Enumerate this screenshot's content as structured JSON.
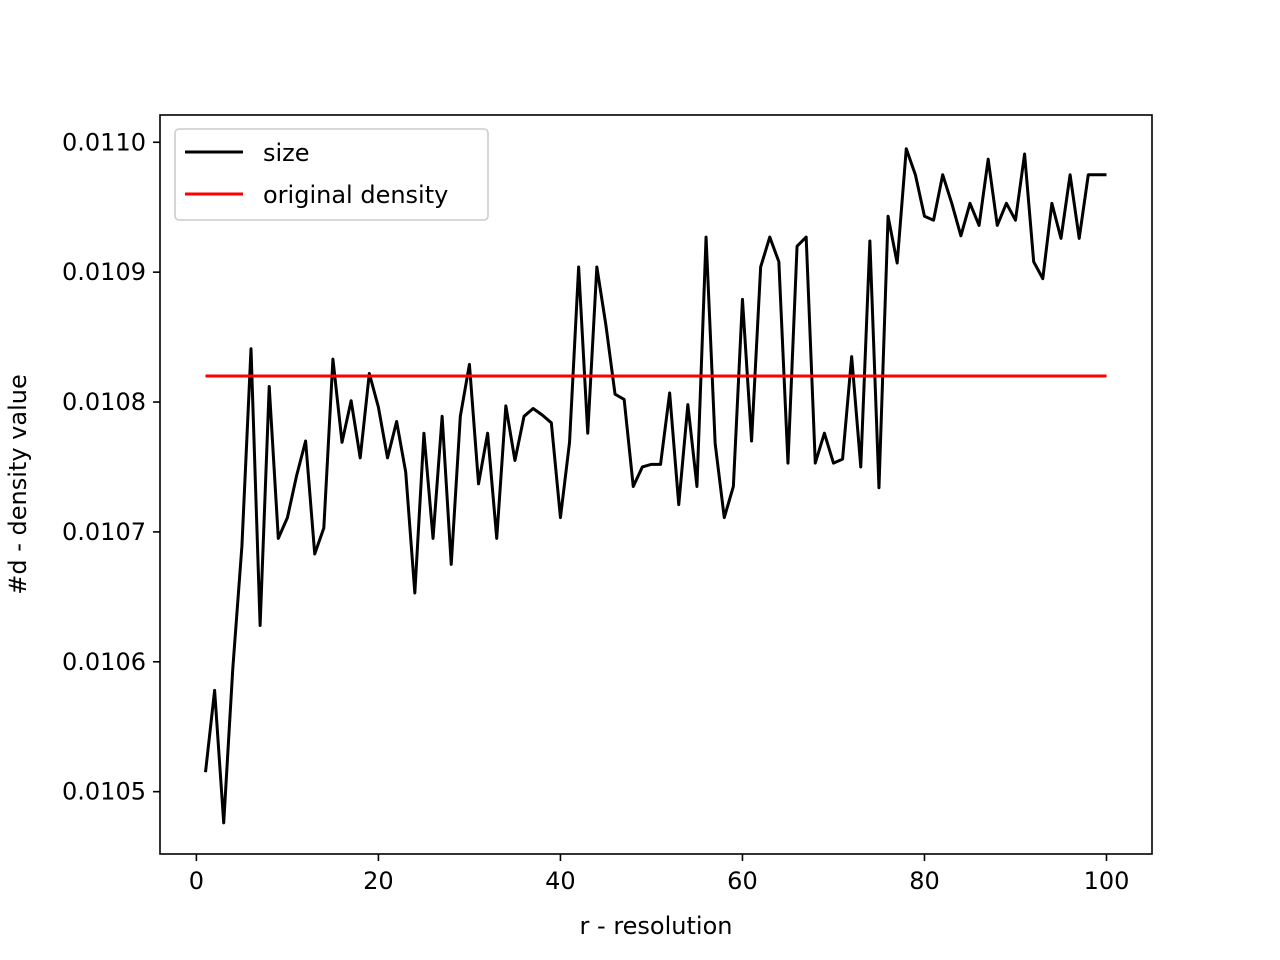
{
  "chart_data": {
    "type": "line",
    "title": "",
    "xlabel": "r - resolution",
    "ylabel": "#d - density value",
    "xlim": [
      -4,
      105
    ],
    "ylim": [
      0.010452,
      0.011021
    ],
    "xticks": [
      0,
      20,
      40,
      60,
      80,
      100
    ],
    "xtick_labels": [
      "0",
      "20",
      "40",
      "60",
      "80",
      "100"
    ],
    "yticks": [
      0.0105,
      0.0106,
      0.0107,
      0.0108,
      0.0109,
      0.011
    ],
    "ytick_labels": [
      "0.0105",
      "0.0106",
      "0.0107",
      "0.0108",
      "0.0109",
      "0.0110"
    ],
    "grid": false,
    "legend_position": "upper-left",
    "series": [
      {
        "name": "size",
        "color": "#000000",
        "x": [
          1,
          2,
          3,
          4,
          5,
          6,
          7,
          8,
          9,
          10,
          11,
          12,
          13,
          14,
          15,
          16,
          17,
          18,
          19,
          20,
          21,
          22,
          23,
          24,
          25,
          26,
          27,
          28,
          29,
          30,
          31,
          32,
          33,
          34,
          35,
          36,
          37,
          38,
          39,
          40,
          41,
          42,
          43,
          44,
          45,
          46,
          47,
          48,
          49,
          50,
          51,
          52,
          53,
          54,
          55,
          56,
          57,
          58,
          59,
          60,
          61,
          62,
          63,
          64,
          65,
          66,
          67,
          68,
          69,
          70,
          71,
          72,
          73,
          74,
          75,
          76,
          77,
          78,
          79,
          80,
          81,
          82,
          83,
          84,
          85,
          86,
          87,
          88,
          89,
          90,
          91,
          92,
          93,
          94,
          95,
          96,
          97,
          98,
          99,
          100
        ],
        "y": [
          0.010515,
          0.010578,
          0.010476,
          0.010595,
          0.010689,
          0.010841,
          0.010628,
          0.010812,
          0.010695,
          0.010711,
          0.010743,
          0.01077,
          0.010683,
          0.010703,
          0.010833,
          0.010769,
          0.010801,
          0.010757,
          0.010822,
          0.010796,
          0.010757,
          0.010785,
          0.010746,
          0.010653,
          0.010776,
          0.010695,
          0.010789,
          0.010675,
          0.010789,
          0.010829,
          0.010737,
          0.010776,
          0.010695,
          0.010797,
          0.010755,
          0.010789,
          0.010795,
          0.01079,
          0.010784,
          0.010711,
          0.010769,
          0.010904,
          0.010776,
          0.010904,
          0.010859,
          0.010806,
          0.010802,
          0.010735,
          0.01075,
          0.010752,
          0.010752,
          0.010807,
          0.010721,
          0.010798,
          0.010735,
          0.010927,
          0.010768,
          0.010711,
          0.010735,
          0.010879,
          0.01077,
          0.010904,
          0.010927,
          0.010908,
          0.010753,
          0.01092,
          0.010927,
          0.010753,
          0.010776,
          0.010753,
          0.010756,
          0.010835,
          0.01075,
          0.010924,
          0.010734,
          0.010943,
          0.010907,
          0.010995,
          0.010975,
          0.010943,
          0.01094,
          0.010975,
          0.010953,
          0.010928,
          0.010953,
          0.010936,
          0.010987,
          0.010936,
          0.010953,
          0.01094,
          0.010991,
          0.010908,
          0.010895,
          0.010953,
          0.010926,
          0.010975,
          0.010926,
          0.010975,
          0.010975,
          0.010975
        ]
      },
      {
        "name": "original density",
        "color": "#ff0000",
        "x": [
          1,
          100
        ],
        "y": [
          0.01082,
          0.01082
        ]
      }
    ]
  }
}
